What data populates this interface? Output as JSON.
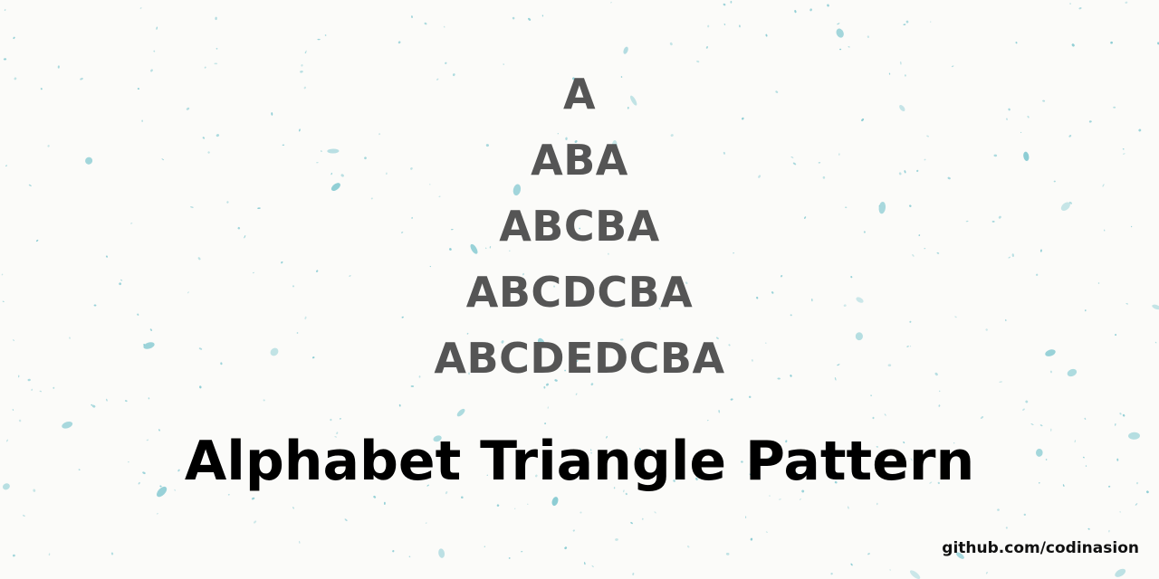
{
  "pattern": {
    "rows": [
      "A",
      "ABA",
      "ABCBA",
      "ABCDCBA",
      "ABCDEDCBA"
    ]
  },
  "title": "Alphabet Triangle Pattern",
  "footer": {
    "link_text": "github.com/codinasion"
  },
  "colors": {
    "background": "#fbfbf9",
    "pattern_text": "#555555",
    "title_text": "#000000",
    "speckle": "#7fc7cf"
  }
}
